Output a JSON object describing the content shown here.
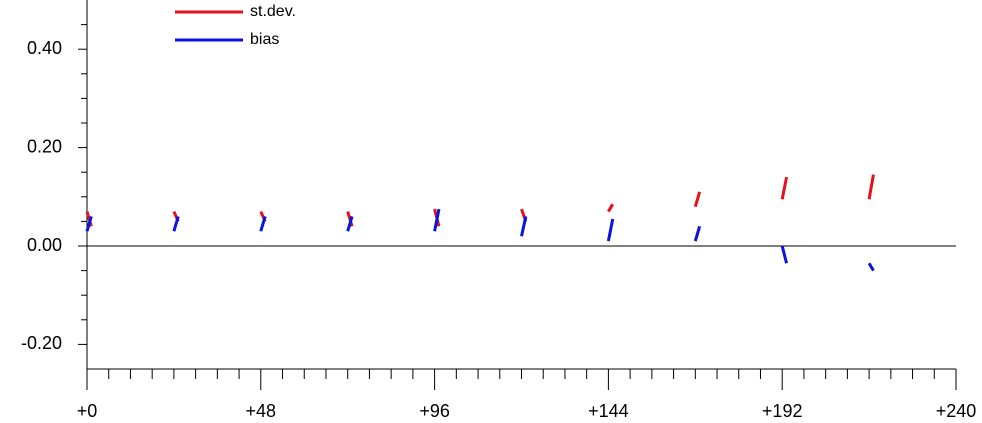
{
  "chart_data": {
    "type": "line",
    "x": [
      0,
      1.2,
      12,
      24,
      25.2,
      36,
      48,
      49.2,
      60,
      72,
      73.2,
      84,
      96,
      97.2,
      108,
      120,
      121.2,
      132,
      144,
      145.2,
      156,
      168,
      169.2,
      180,
      192,
      193.2,
      204,
      216,
      217.2,
      228
    ],
    "series": [
      {
        "name": "st.dev.",
        "color": "#e8101a",
        "values": [
          0.07,
          0.04,
          null,
          0.07,
          0.05,
          null,
          0.07,
          0.05,
          null,
          0.07,
          0.04,
          null,
          0.075,
          0.04,
          null,
          0.075,
          0.05,
          null,
          0.07,
          0.085,
          null,
          0.08,
          0.11,
          null,
          0.095,
          0.14,
          null,
          0.095,
          0.145,
          null
        ]
      },
      {
        "name": "bias",
        "color": "#0a14e0",
        "values": [
          0.03,
          0.06,
          null,
          0.03,
          0.06,
          null,
          0.03,
          0.06,
          null,
          0.03,
          0.06,
          null,
          0.03,
          0.075,
          null,
          0.02,
          0.06,
          null,
          0.01,
          0.055,
          null,
          0.01,
          0.04,
          null,
          0.0,
          -0.035,
          null,
          -0.035,
          -0.05,
          null
        ]
      }
    ],
    "xlim": [
      0,
      240
    ],
    "ylim": [
      -0.25,
      0.5
    ],
    "xticks": [
      {
        "value": 0,
        "label": "+0"
      },
      {
        "value": 48,
        "label": "+48"
      },
      {
        "value": 96,
        "label": "+96"
      },
      {
        "value": 144,
        "label": "+144"
      },
      {
        "value": 192,
        "label": "+192"
      },
      {
        "value": 240,
        "label": "+240"
      }
    ],
    "xminorticks": [
      6,
      12,
      18,
      24,
      30,
      36,
      42,
      54,
      60,
      66,
      72,
      78,
      84,
      90,
      102,
      108,
      114,
      120,
      126,
      132,
      138,
      150,
      156,
      162,
      168,
      174,
      180,
      186,
      198,
      204,
      210,
      216,
      222,
      228,
      234
    ],
    "yticks": [
      {
        "value": -0.2,
        "label": "-0.20"
      },
      {
        "value": 0,
        "label": "0.00"
      },
      {
        "value": 0.2,
        "label": "0.20"
      },
      {
        "value": 0.4,
        "label": "0.40"
      }
    ],
    "yminorticks": [
      -0.15,
      -0.1,
      -0.05,
      0.05,
      0.1,
      0.15,
      0.25,
      0.3,
      0.35,
      0.45
    ],
    "legend": "upper-left"
  }
}
